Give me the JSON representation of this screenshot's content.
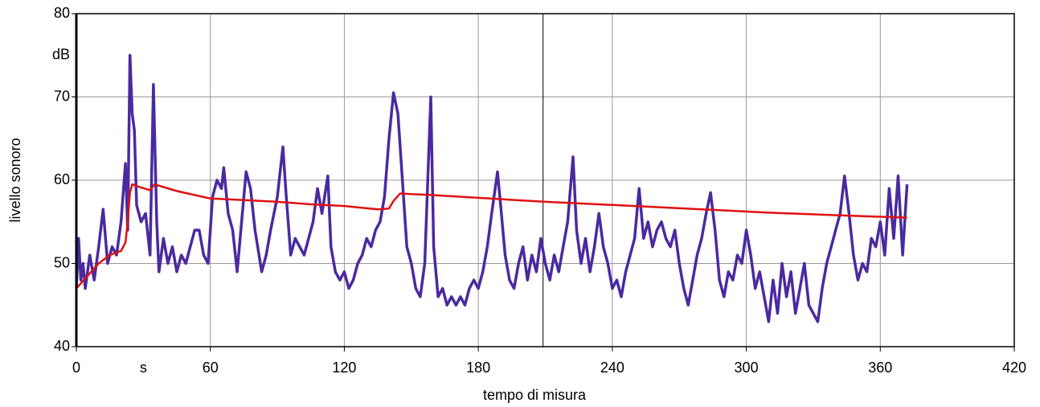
{
  "chart_data": {
    "type": "line",
    "xlabel": "tempo di misura",
    "ylabel": "livello sonoro",
    "x_unit": "s",
    "y_unit": "dB",
    "xlim": [
      0,
      420
    ],
    "ylim": [
      40,
      80
    ],
    "xticks": [
      0,
      60,
      120,
      180,
      240,
      300,
      360,
      420
    ],
    "yticks": [
      40,
      50,
      60,
      70,
      80
    ],
    "grid": true,
    "cursor_x": 209,
    "series": [
      {
        "color": "#4a2aa0",
        "x": [
          0,
          1,
          2,
          3,
          4,
          6,
          8,
          10,
          12,
          14,
          16,
          18,
          20,
          22,
          23,
          24,
          25,
          26,
          27,
          29,
          31,
          33,
          34.5,
          36,
          37,
          39,
          41,
          43,
          45,
          47,
          49,
          51,
          53,
          55,
          57,
          59,
          61,
          63,
          65,
          66,
          68,
          70,
          72,
          74,
          76,
          78,
          80,
          83,
          85,
          87,
          90,
          92.5,
          94,
          96,
          98,
          100,
          102,
          104,
          106,
          108,
          110,
          112.6,
          114,
          116,
          118,
          120,
          122,
          124,
          126,
          128,
          130,
          132,
          134,
          136,
          138,
          140,
          142,
          144,
          146,
          148,
          150,
          152,
          154,
          156,
          158.7,
          160,
          162,
          164,
          166,
          168,
          170,
          172,
          174,
          176,
          178,
          180,
          182,
          184,
          186,
          188.6,
          190,
          192,
          194,
          196,
          198,
          200,
          202,
          204,
          206,
          208,
          210,
          212,
          214,
          216,
          218,
          220,
          222.4,
          224,
          226,
          228,
          230,
          232,
          234,
          236,
          238,
          240,
          242,
          244,
          246,
          248,
          250,
          252,
          254,
          256,
          258,
          260,
          262,
          264,
          266,
          268,
          270,
          272,
          274,
          276,
          278,
          280,
          282,
          284,
          286,
          288,
          290,
          292,
          294,
          296,
          298,
          300,
          302,
          304,
          306,
          308,
          310,
          312,
          314,
          316,
          318,
          320,
          322,
          324,
          326,
          328,
          330,
          332,
          334,
          336,
          338,
          340,
          342,
          344,
          346,
          348,
          350,
          352,
          354,
          356,
          358,
          360,
          362,
          364,
          366,
          368,
          370,
          372
        ],
        "values": [
          47,
          53,
          48,
          50,
          47,
          51,
          48,
          52,
          56.5,
          50,
          52,
          51,
          55,
          62,
          54,
          75,
          68,
          66,
          57,
          55,
          56,
          51,
          71.5,
          55,
          49,
          53,
          50,
          52,
          49,
          51,
          50,
          52,
          54,
          54,
          51,
          50,
          58,
          60,
          59,
          61.5,
          56,
          54,
          49,
          55,
          61,
          59,
          54,
          49,
          51,
          54,
          58,
          64,
          58,
          51,
          53,
          52,
          51,
          53,
          55,
          59,
          56,
          60.5,
          52,
          49,
          48,
          49,
          47,
          48,
          50,
          51,
          53,
          52,
          54,
          55,
          58,
          65,
          70.5,
          68,
          60,
          52,
          50,
          47,
          46,
          50,
          70,
          52,
          46,
          47,
          45,
          46,
          45,
          46,
          45,
          47,
          48,
          47,
          49,
          52,
          56,
          61,
          57,
          51,
          48,
          47,
          50,
          52,
          48,
          51,
          49,
          53,
          50,
          48,
          51,
          49,
          52,
          55,
          62.8,
          54,
          50,
          53,
          49,
          52,
          56,
          52,
          50,
          47,
          48,
          46,
          49,
          51,
          53,
          59,
          53,
          55,
          52,
          54,
          55,
          53,
          52,
          54,
          50,
          47,
          45,
          48,
          51,
          53,
          56,
          58.5,
          54,
          48,
          46,
          49,
          48,
          51,
          50,
          54,
          51,
          47,
          49,
          46,
          43,
          48,
          44,
          50,
          46,
          49,
          44,
          47,
          50,
          45,
          44,
          43,
          47,
          50,
          52,
          54,
          56,
          60.5,
          56,
          51,
          48,
          50,
          49,
          53,
          52,
          55,
          51,
          59,
          53,
          60.5,
          51,
          59.5
        ]
      },
      {
        "color": "#e01010",
        "x": [
          0,
          5,
          10,
          15,
          20,
          22,
          23,
          24,
          25,
          28,
          33,
          35,
          45,
          60,
          75,
          90,
          105,
          120,
          135,
          140,
          142,
          145,
          160,
          185,
          210,
          250,
          280,
          310,
          340,
          360,
          372
        ],
        "values": [
          47,
          48.5,
          50,
          51,
          51.5,
          52.5,
          55,
          58.5,
          59.5,
          59.2,
          58.8,
          59.5,
          58.7,
          57.8,
          57.6,
          57.4,
          57.1,
          56.9,
          56.5,
          56.6,
          57.5,
          58.4,
          58.2,
          57.8,
          57.4,
          56.9,
          56.5,
          56.1,
          55.8,
          55.6,
          55.5
        ]
      }
    ]
  }
}
